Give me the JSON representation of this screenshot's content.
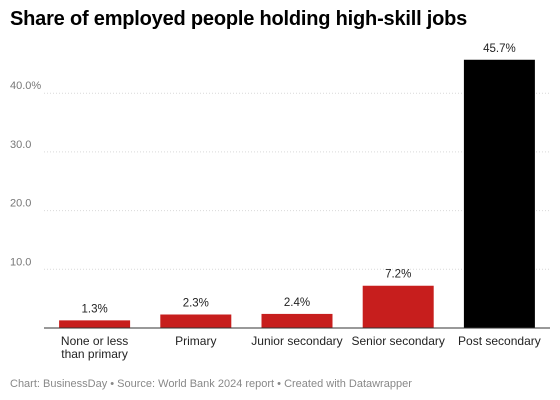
{
  "chart_data": {
    "type": "bar",
    "title": "Share of employed people holding high-skill jobs",
    "categories": [
      "None or less than primary",
      "Primary",
      "Junior secondary",
      "Senior secondary",
      "Post secondary"
    ],
    "values": [
      1.3,
      2.3,
      2.4,
      7.2,
      45.7
    ],
    "data_labels": [
      "1.3%",
      "2.3%",
      "2.4%",
      "7.2%",
      "45.7%"
    ],
    "bar_colors": [
      "#c71e1d",
      "#c71e1d",
      "#c71e1d",
      "#c71e1d",
      "#000000"
    ],
    "yticks": [
      10,
      20,
      30,
      40
    ],
    "ytick_labels": [
      "10.0",
      "20.0",
      "30.0",
      "40.0%"
    ],
    "ylim": [
      0,
      46
    ],
    "grid": true,
    "xlabel": "",
    "ylabel": ""
  },
  "footer": "Chart: BusinessDay • Source: World Bank 2024 report • Created with Datawrapper"
}
